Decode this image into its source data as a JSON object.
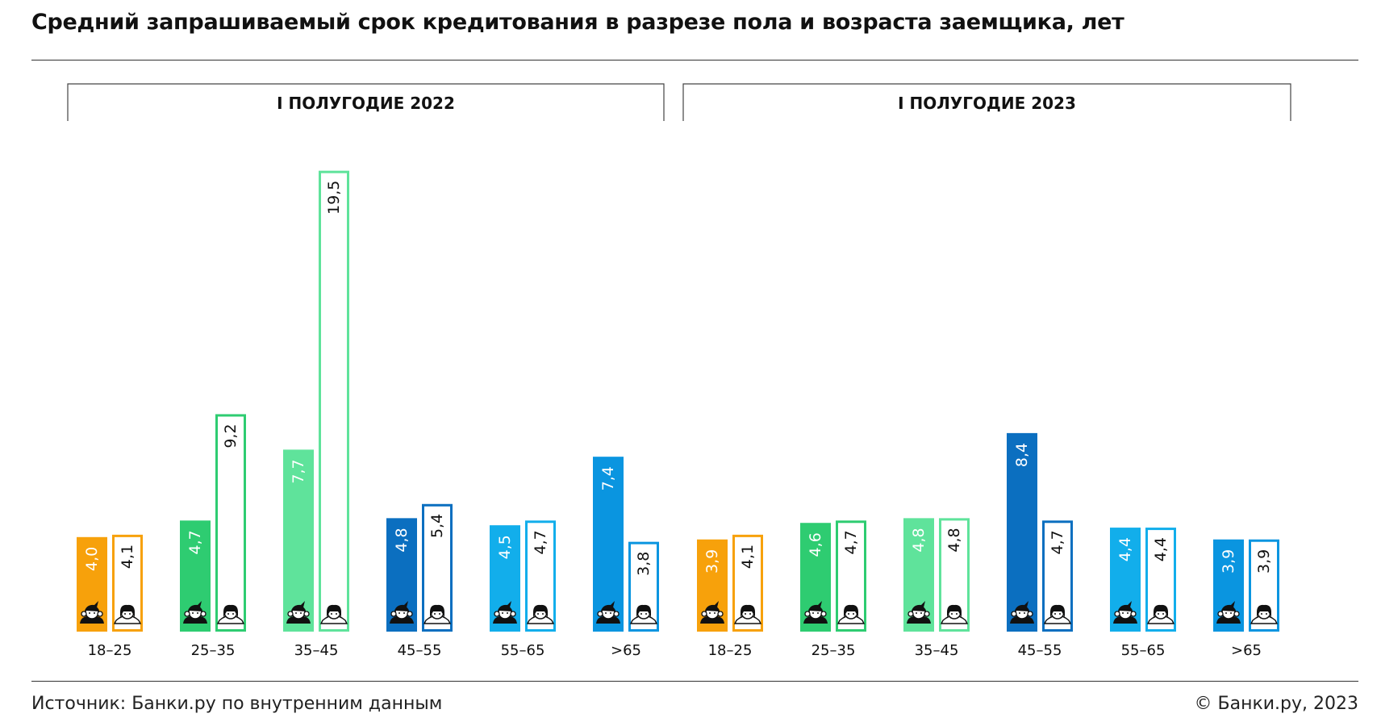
{
  "title": "Средний запрашиваемый срок кредитования в разрезе пола и возраста заемщика, лет",
  "source": "Источник: Банки.ру по внутренним данным",
  "copyright": "© Банки.ру, 2023",
  "icons": {
    "male": "male-borrower-icon",
    "female": "female-borrower-icon"
  },
  "chart_data": {
    "type": "bar",
    "groups": [
      {
        "label": "I ПОЛУГОДИЕ 2022",
        "categories": [
          "18–25",
          "25–35",
          "35–45",
          "45–55",
          "55–65",
          ">65"
        ],
        "series": [
          {
            "values": [
              4.0,
              4.7,
              7.7,
              4.8,
              4.5,
              7.4
            ],
            "value_labels": [
              "4,0",
              "4,7",
              "7,7",
              "4,8",
              "4,5",
              "7,4"
            ]
          },
          {
            "values": [
              4.1,
              9.2,
              19.5,
              5.4,
              4.7,
              3.8
            ],
            "value_labels": [
              "4,1",
              "9,2",
              "19,5",
              "5,4",
              "4,7",
              "3,8"
            ]
          }
        ]
      },
      {
        "label": "I ПОЛУГОДИЕ 2023",
        "categories": [
          "18–25",
          "25–35",
          "35–45",
          "45–55",
          "55–65",
          ">65"
        ],
        "series": [
          {
            "values": [
              3.9,
              4.6,
              4.8,
              8.4,
              4.4,
              3.9
            ],
            "value_labels": [
              "3,9",
              "4,6",
              "4,8",
              "8,4",
              "4,4",
              "3,9"
            ]
          },
          {
            "values": [
              4.1,
              4.7,
              4.8,
              4.7,
              4.4,
              3.9
            ],
            "value_labels": [
              "4,1",
              "4,7",
              "4,8",
              "4,7",
              "4,4",
              "3,9"
            ]
          }
        ]
      }
    ],
    "category_colors": [
      "#F7A10B",
      "#2ECC71",
      "#5FE39B",
      "#0B6FC0",
      "#12AEEB",
      "#0A95E0"
    ],
    "grid": false
  }
}
